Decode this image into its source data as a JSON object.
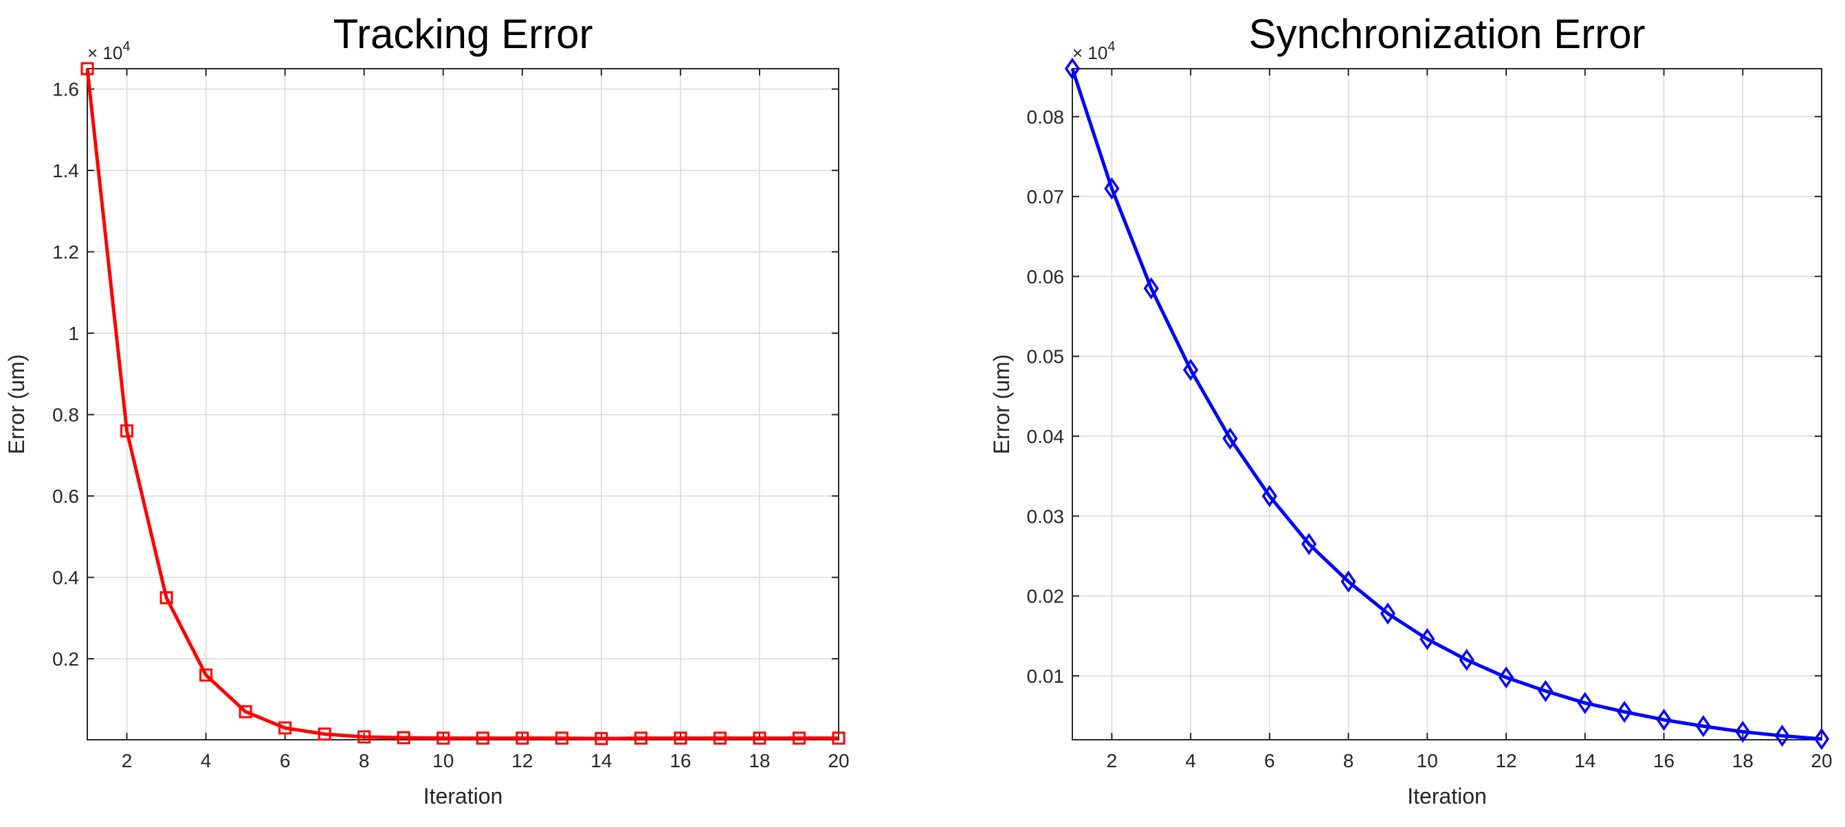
{
  "chart_data": [
    {
      "type": "line",
      "title": "Tracking Error",
      "xlabel": "Iteration",
      "ylabel": "Error (um)",
      "exponent_label": "× 10^4",
      "exponent_base": "× 10",
      "exponent_power": "4",
      "xlim": [
        1,
        20
      ],
      "ylim": [
        0.001,
        1.65
      ],
      "xticks": [
        2,
        4,
        6,
        8,
        10,
        12,
        14,
        16,
        18,
        20
      ],
      "yticks": [
        0.2,
        0.4,
        0.6,
        0.8,
        1,
        1.2,
        1.4,
        1.6
      ],
      "ytick_labels": [
        "0.2",
        "0.4",
        "0.6",
        "0.8",
        "1",
        "1.2",
        "1.4",
        "1.6"
      ],
      "grid": true,
      "color": "#ff0000",
      "marker": "square",
      "series": [
        {
          "x": [
            1,
            2,
            3,
            4,
            5,
            6,
            7,
            8,
            9,
            10,
            11,
            12,
            13,
            14,
            15,
            16,
            17,
            18,
            19,
            20
          ],
          "values": [
            1.65,
            0.76,
            0.35,
            0.16,
            0.07,
            0.03,
            0.015,
            0.008,
            0.006,
            0.005,
            0.005,
            0.005,
            0.005,
            0.004,
            0.005,
            0.005,
            0.005,
            0.005,
            0.005,
            0.005
          ]
        }
      ]
    },
    {
      "type": "line",
      "title": "Synchronization Error",
      "xlabel": "Iteration",
      "ylabel": "Error (um)",
      "exponent_label": "× 10^4",
      "exponent_base": "× 10",
      "exponent_power": "4",
      "xlim": [
        1,
        20
      ],
      "ylim": [
        0.002,
        0.086
      ],
      "xticks": [
        2,
        4,
        6,
        8,
        10,
        12,
        14,
        16,
        18,
        20
      ],
      "yticks": [
        0.01,
        0.02,
        0.03,
        0.04,
        0.05,
        0.06,
        0.07,
        0.08
      ],
      "ytick_labels": [
        "0.01",
        "0.02",
        "0.03",
        "0.04",
        "0.05",
        "0.06",
        "0.07",
        "0.08"
      ],
      "grid": true,
      "color": "#0000ff",
      "marker": "diamond",
      "series": [
        {
          "x": [
            1,
            2,
            3,
            4,
            5,
            6,
            7,
            8,
            9,
            10,
            11,
            12,
            13,
            14,
            15,
            16,
            17,
            18,
            19,
            20
          ],
          "values": [
            0.086,
            0.071,
            0.0585,
            0.0483,
            0.0397,
            0.0325,
            0.0265,
            0.0218,
            0.0178,
            0.0146,
            0.012,
            0.0098,
            0.0081,
            0.0066,
            0.0055,
            0.0045,
            0.0037,
            0.003,
            0.0025,
            0.0021
          ]
        }
      ]
    }
  ]
}
